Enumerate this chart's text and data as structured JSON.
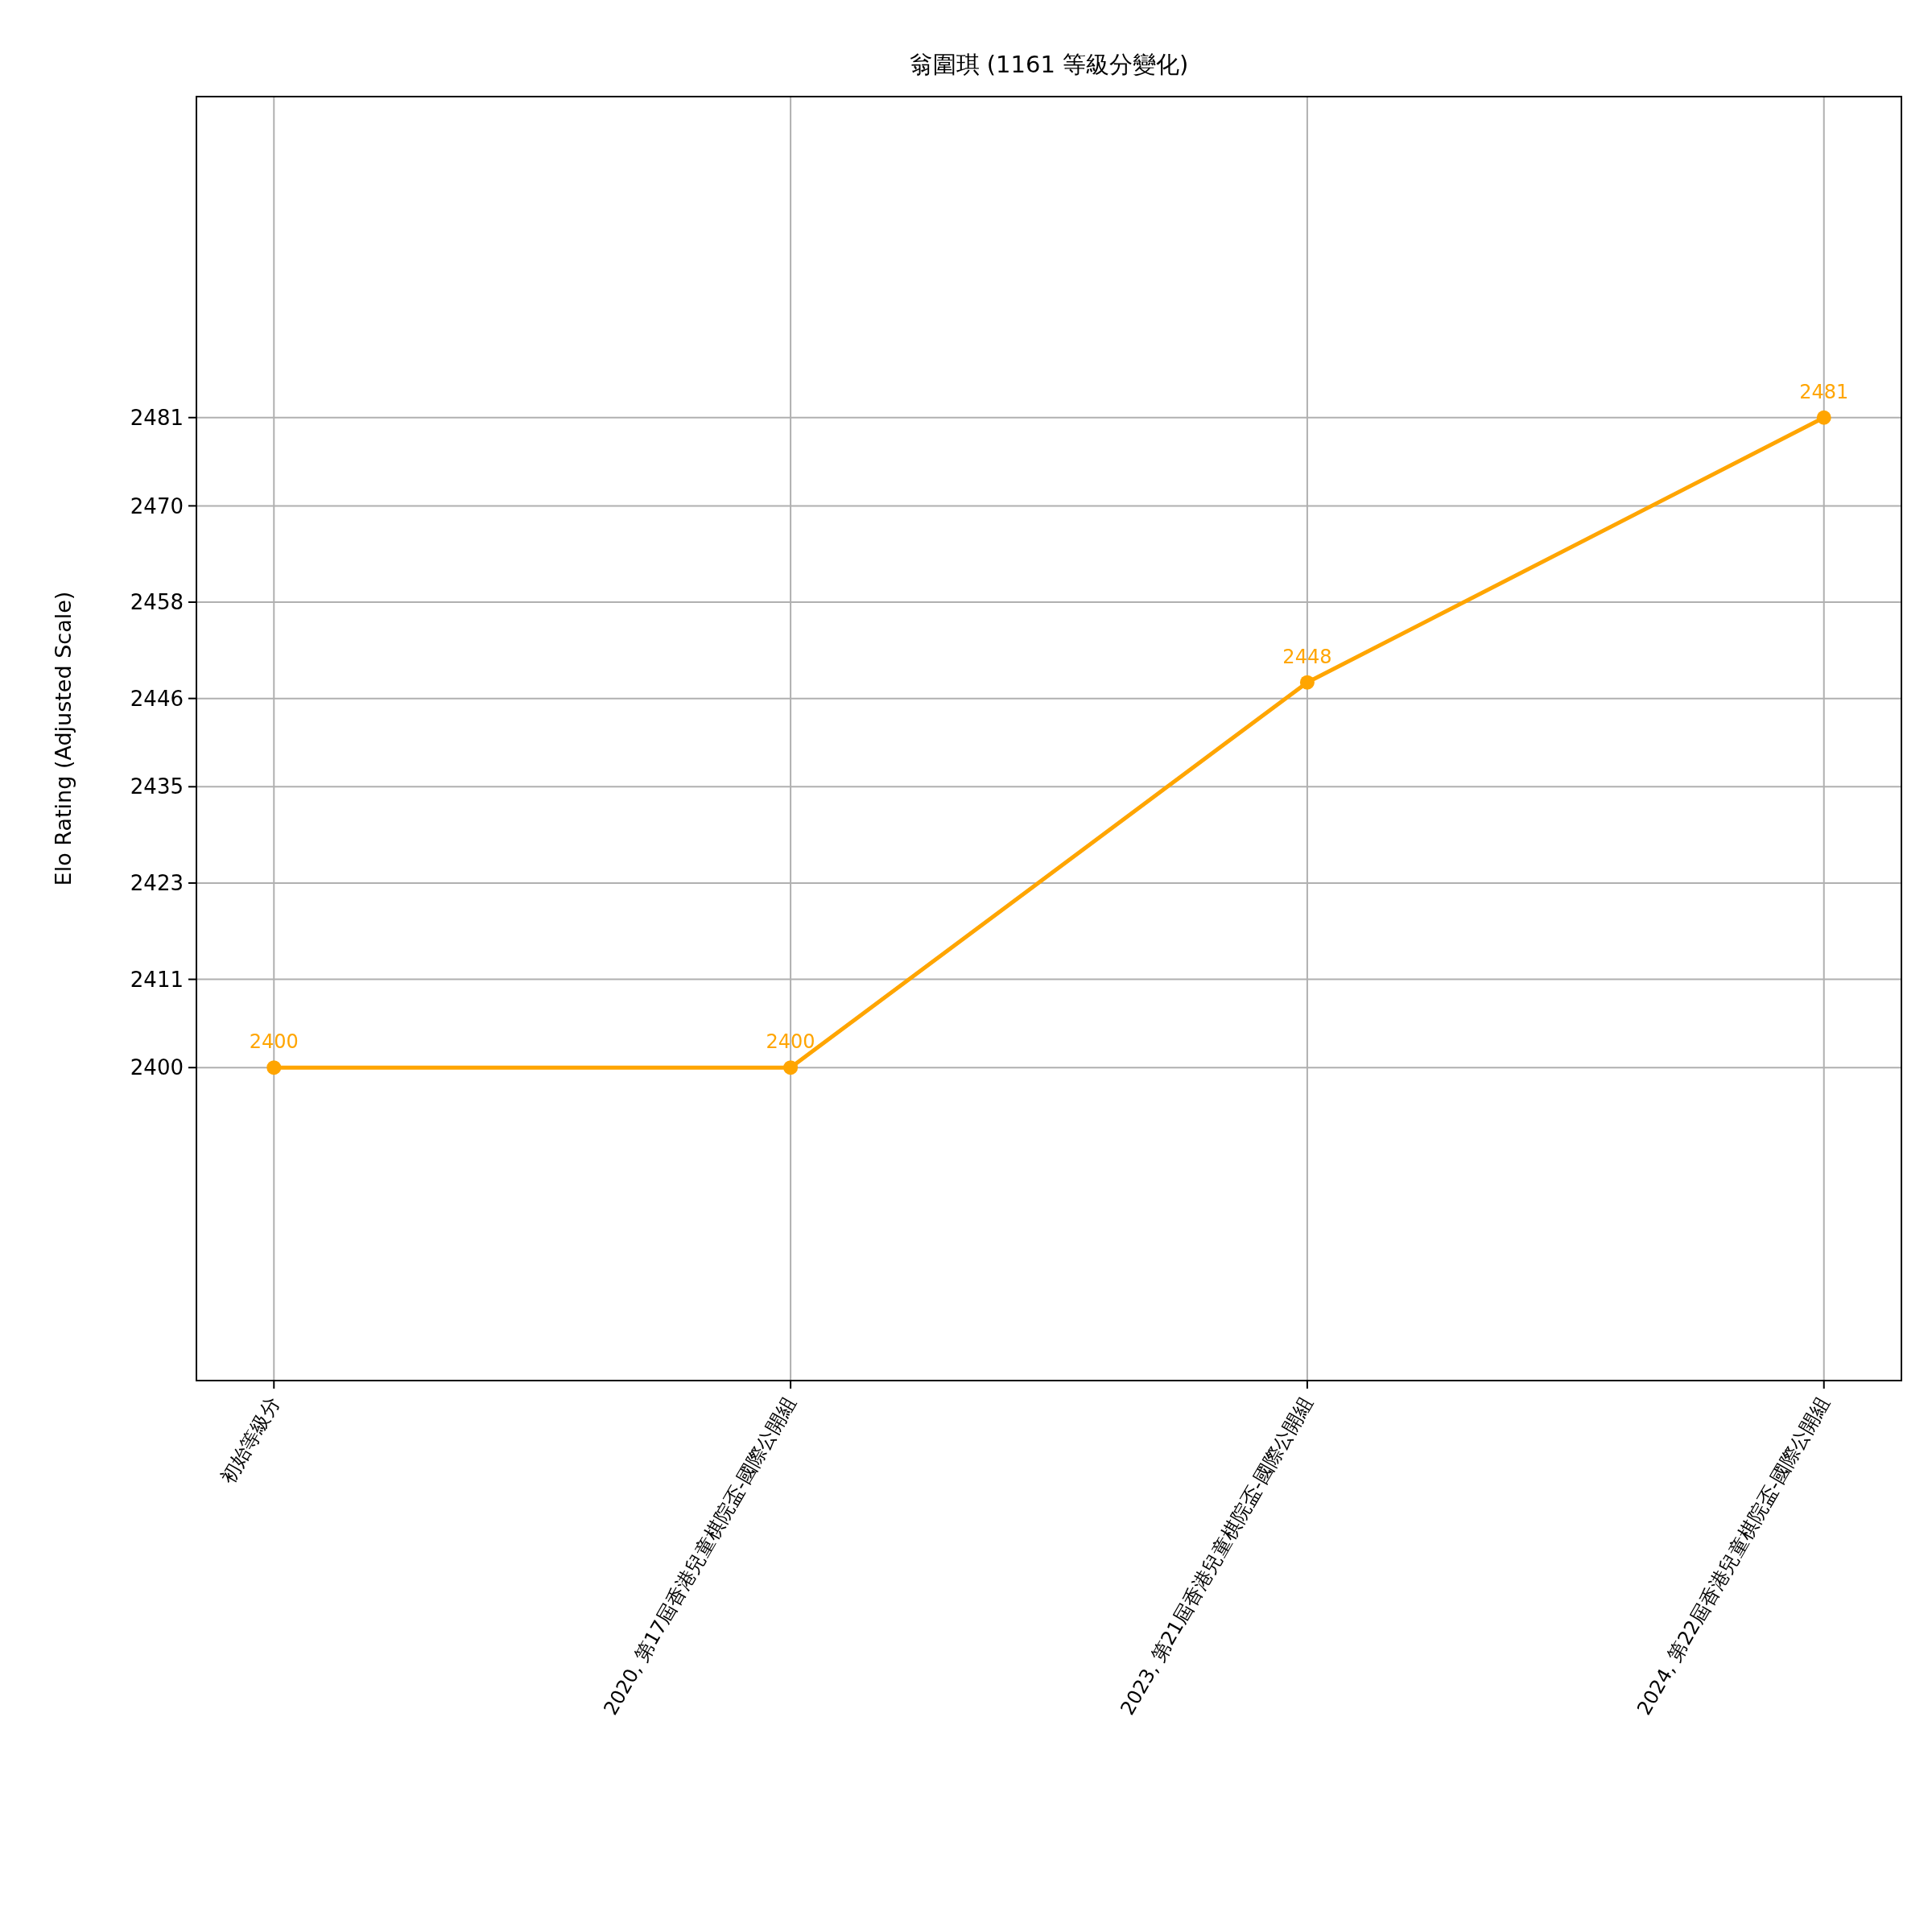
{
  "chart_data": {
    "type": "line",
    "title": "翁圍琪 (1161 等級分變化)",
    "ylabel": "Elo Rating (Adjusted Scale)",
    "categories": [
      "初始等級分",
      "2020, 第17屆香港兒童棋院盃-國際公開組",
      "2023, 第21屆香港兒童棋院盃-國際公開組",
      "2024, 第22屆香港兒童棋院盃-國際公開組"
    ],
    "series": [
      {
        "color": "#ffa500",
        "values": [
          2400,
          2400,
          2448,
          2481
        ]
      }
    ],
    "ylim": [
      2361,
      2521
    ],
    "yticks": [
      2400,
      2411,
      2423,
      2435,
      2446,
      2458,
      2470,
      2481
    ],
    "grid": true,
    "marker": "circle",
    "line_style": "solid",
    "data_labels": true
  }
}
